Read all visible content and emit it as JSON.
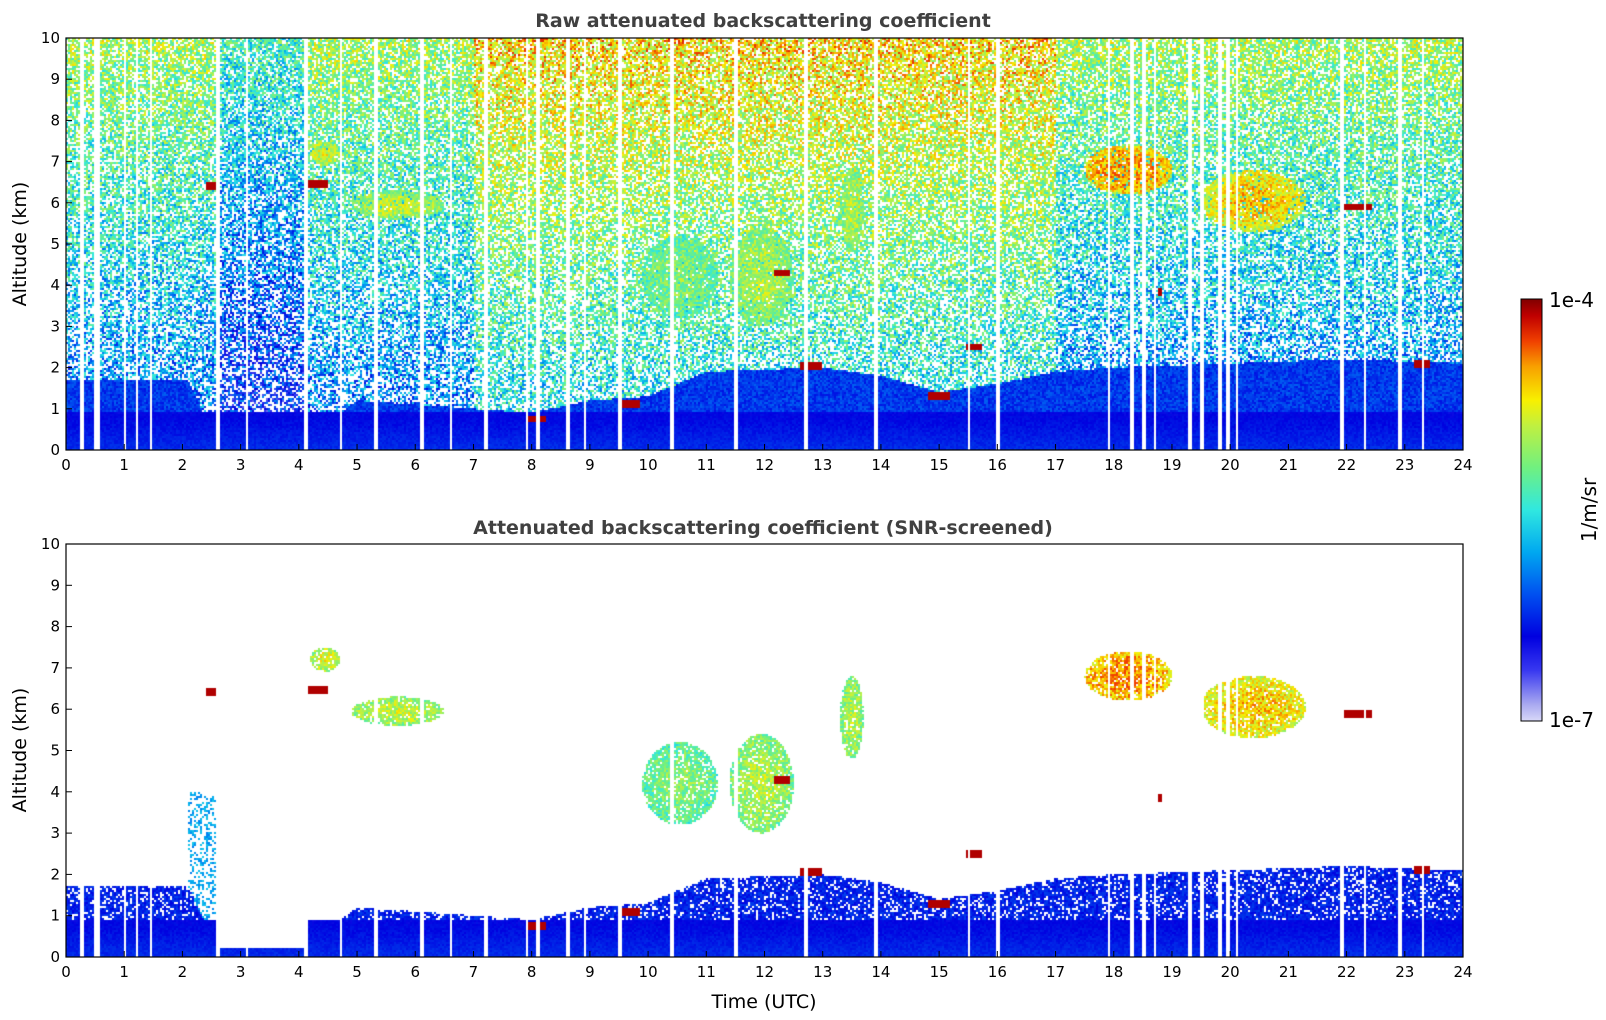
{
  "chart_data": [
    {
      "type": "heatmap",
      "title": "Raw attenuated backscattering coefficient",
      "xlabel": "",
      "ylabel": "Altitude (km)",
      "xlim": [
        0,
        24
      ],
      "ylim": [
        0,
        10
      ],
      "xticks": [
        0,
        1,
        2,
        3,
        4,
        5,
        6,
        7,
        8,
        9,
        10,
        11,
        12,
        13,
        14,
        15,
        16,
        17,
        18,
        19,
        20,
        21,
        22,
        23,
        24
      ],
      "yticks": [
        0,
        1,
        2,
        3,
        4,
        5,
        6,
        7,
        8,
        9,
        10
      ],
      "screened": false
    },
    {
      "type": "heatmap",
      "title": "Attenuated backscattering coefficient (SNR-screened)",
      "xlabel": "Time (UTC)",
      "ylabel": "Altitude (km)",
      "xlim": [
        0,
        24
      ],
      "ylim": [
        0,
        10
      ],
      "xticks": [
        0,
        1,
        2,
        3,
        4,
        5,
        6,
        7,
        8,
        9,
        10,
        11,
        12,
        13,
        14,
        15,
        16,
        17,
        18,
        19,
        20,
        21,
        22,
        23,
        24
      ],
      "yticks": [
        0,
        1,
        2,
        3,
        4,
        5,
        6,
        7,
        8,
        9,
        10
      ],
      "screened": true
    }
  ],
  "colorbar": {
    "label": "1/m/sr",
    "min_label": "1e-7",
    "max_label": "1e-4",
    "scale": "log",
    "colors": [
      "#d8d8f8",
      "#a8a8f0",
      "#3838f0",
      "#0000e0",
      "#0050f0",
      "#00a8f0",
      "#30e8e0",
      "#70f080",
      "#c0f040",
      "#f8f000",
      "#f8a000",
      "#f04000",
      "#c00000",
      "#800000"
    ]
  },
  "features": {
    "low_aerosol_layer": {
      "t_start": 0,
      "t_end": 24,
      "alt_top_km": 0.9
    },
    "boundary_layer_top": [
      [
        0,
        1.7
      ],
      [
        2.1,
        1.7
      ],
      [
        2.6,
        0.2
      ],
      [
        4.1,
        0.2
      ],
      [
        5,
        1.2
      ],
      [
        8,
        0.9
      ],
      [
        9,
        1.2
      ],
      [
        10,
        1.3
      ],
      [
        11,
        1.9
      ],
      [
        13,
        2.0
      ],
      [
        14,
        1.8
      ],
      [
        15,
        1.4
      ],
      [
        16,
        1.6
      ],
      [
        17,
        1.9
      ],
      [
        18,
        2.0
      ],
      [
        20,
        2.1
      ],
      [
        22,
        2.2
      ],
      [
        24,
        2.1
      ]
    ],
    "water_clouds": [
      {
        "t": 2.5,
        "alt": 6.4,
        "dt": 0.2
      },
      {
        "t": 4.3,
        "alt": 6.45,
        "dt": 0.4
      },
      {
        "t": 8.1,
        "alt": 0.75,
        "dt": 0.3
      },
      {
        "t": 9.7,
        "alt": 1.1,
        "dt": 0.3
      },
      {
        "t": 12.3,
        "alt": 4.3,
        "dt": 0.3
      },
      {
        "t": 12.8,
        "alt": 2.05,
        "dt": 0.4
      },
      {
        "t": 15.0,
        "alt": 1.3,
        "dt": 0.4
      },
      {
        "t": 15.6,
        "alt": 2.5,
        "dt": 0.3
      },
      {
        "t": 18.8,
        "alt": 3.85,
        "dt": 0.08
      },
      {
        "t": 22.2,
        "alt": 5.9,
        "dt": 0.5
      },
      {
        "t": 23.3,
        "alt": 2.1,
        "dt": 0.3
      }
    ],
    "ice_clouds": [
      {
        "t0": 4.2,
        "t1": 4.7,
        "a0": 6.9,
        "a1": 7.5,
        "level": 0.65
      },
      {
        "t0": 4.9,
        "t1": 6.5,
        "a0": 5.6,
        "a1": 6.3,
        "level": 0.62
      },
      {
        "t0": 9.9,
        "t1": 11.2,
        "a0": 3.2,
        "a1": 5.2,
        "level": 0.55
      },
      {
        "t0": 11.4,
        "t1": 12.5,
        "a0": 3.0,
        "a1": 5.4,
        "level": 0.6
      },
      {
        "t0": 13.3,
        "t1": 13.7,
        "a0": 4.8,
        "a1": 6.8,
        "level": 0.6
      },
      {
        "t0": 17.5,
        "t1": 19.0,
        "a0": 6.2,
        "a1": 7.4,
        "level": 0.78
      },
      {
        "t0": 19.5,
        "t1": 21.3,
        "a0": 5.3,
        "a1": 6.8,
        "level": 0.72
      }
    ],
    "blank_profiles_utc": [
      0.25,
      0.5,
      0.55,
      1.0,
      1.2,
      1.45,
      2.6,
      3.1,
      4.1,
      4.7,
      5.3,
      6.1,
      6.6,
      7.2,
      7.9,
      8.1,
      8.6,
      8.9,
      9.5,
      10.4,
      11.5,
      12.7,
      13.9,
      15.5,
      16.0,
      17.9,
      18.3,
      18.5,
      18.7,
      19.3,
      19.5,
      19.8,
      19.95,
      20.1,
      21.9,
      22.3,
      22.9,
      23.3
    ]
  }
}
